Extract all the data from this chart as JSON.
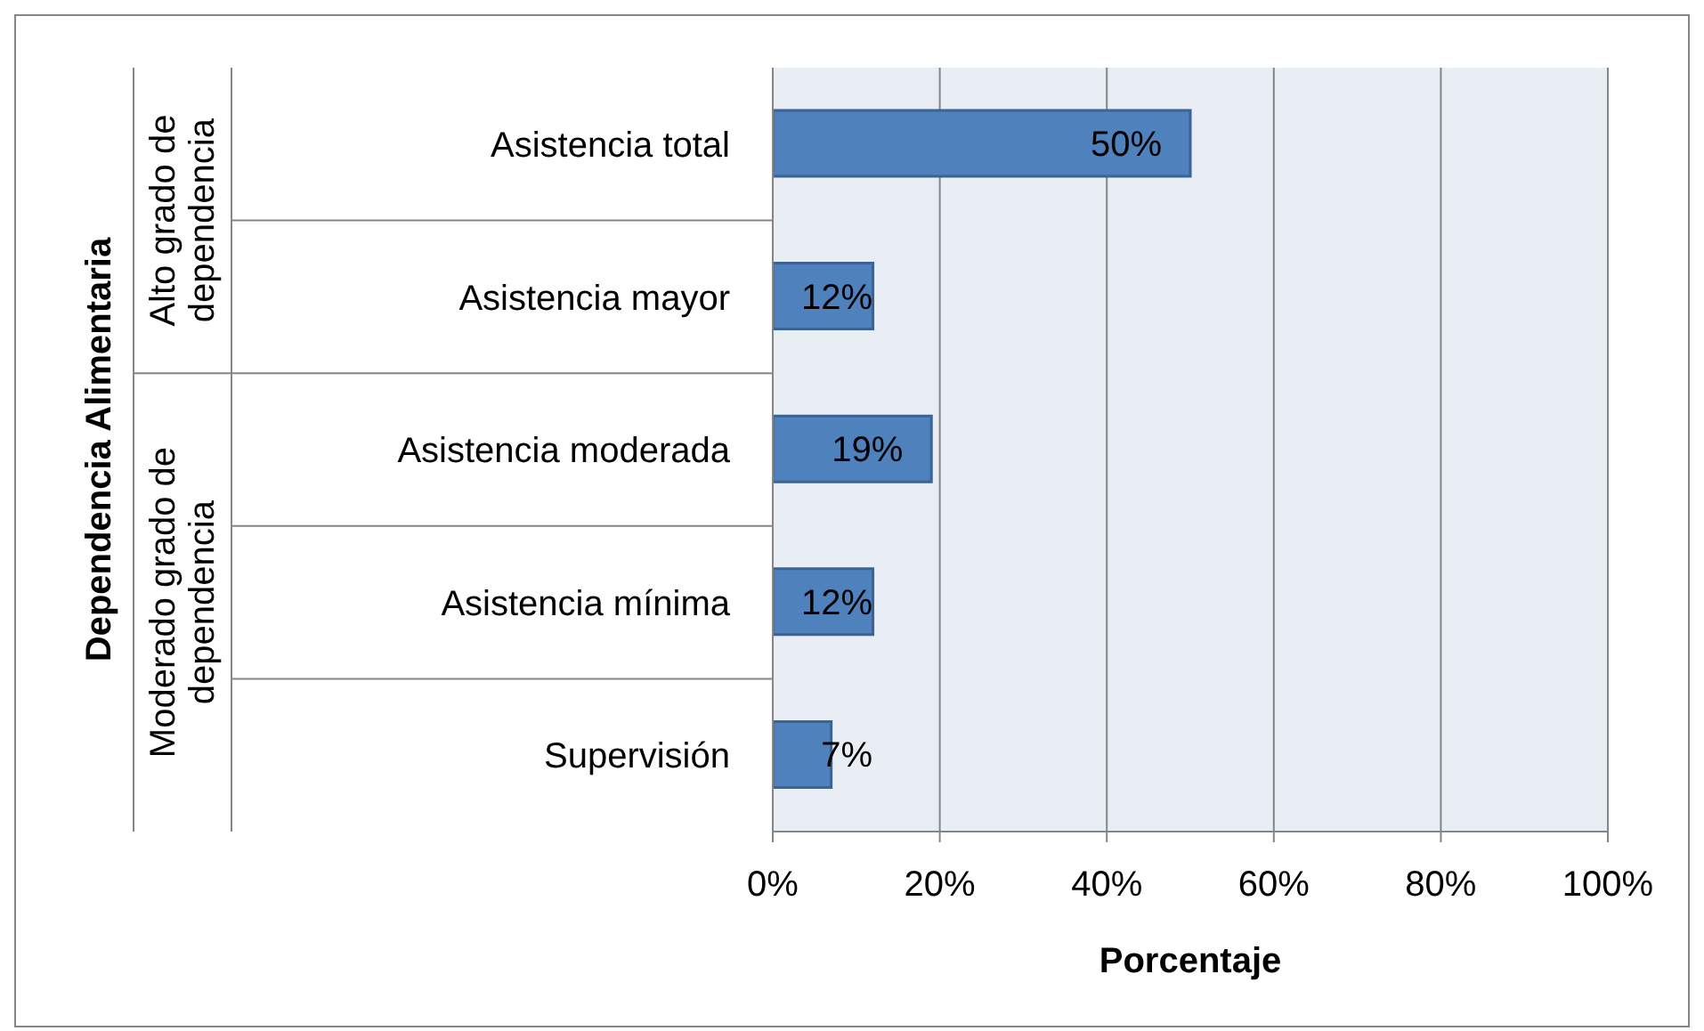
{
  "chart_data": {
    "type": "bar",
    "orientation": "horizontal",
    "xlabel": "Porcentaje",
    "categories": [
      "Asistencia total",
      "Asistencia mayor",
      "Asistencia moderada",
      "Asistencia mínima",
      "Supervisión"
    ],
    "values": [
      50,
      12,
      19,
      12,
      7
    ],
    "value_labels": [
      "50%",
      "12%",
      "19%",
      "12%",
      "7%"
    ],
    "color": "#4f81bd",
    "xlim": [
      0,
      100
    ],
    "xticks": [
      {
        "value": 0,
        "label": "0%"
      },
      {
        "value": 20,
        "label": "20%"
      },
      {
        "value": 40,
        "label": "40%"
      },
      {
        "value": 60,
        "label": "60%"
      },
      {
        "value": 80,
        "label": "80%"
      },
      {
        "value": 100,
        "label": "100%"
      }
    ],
    "grid": "x",
    "annotations": [
      "Alto grado de dependencia",
      "Moderado grado de dependencia",
      "Dependencia Alimentaria"
    ]
  }
}
